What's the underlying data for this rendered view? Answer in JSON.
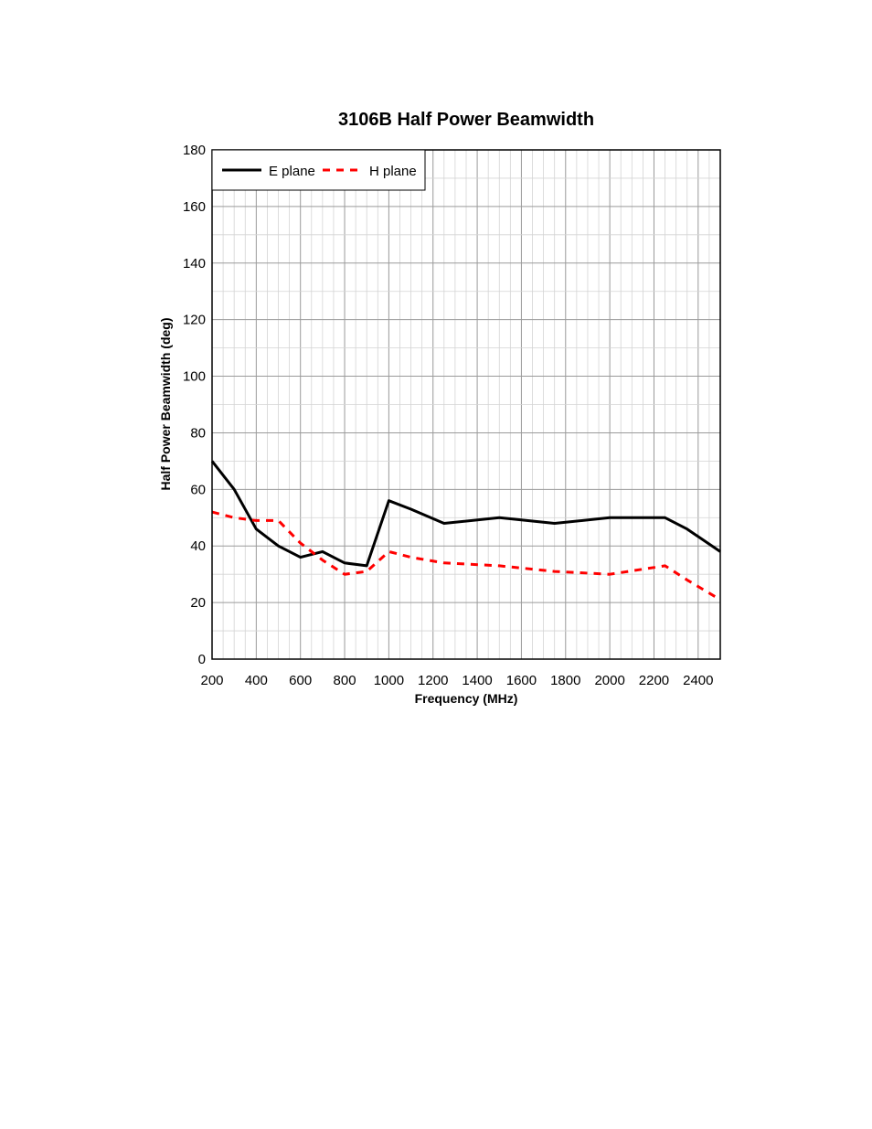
{
  "chart_data": {
    "type": "line",
    "title": "3106B Half Power Beamwidth",
    "xlabel": "Frequency (MHz)",
    "ylabel": "Half Power Beamwidth (deg)",
    "xlim": [
      200,
      2500
    ],
    "ylim": [
      0,
      180
    ],
    "x_ticks": [
      200,
      400,
      600,
      800,
      1000,
      1200,
      1400,
      1600,
      1800,
      2000,
      2200,
      2400
    ],
    "y_ticks": [
      0,
      20,
      40,
      60,
      80,
      100,
      120,
      140,
      160,
      180
    ],
    "grid": true,
    "legend_position": "top-left",
    "series": [
      {
        "name": "E plane",
        "color": "#000000",
        "style": "solid",
        "x": [
          200,
          300,
          400,
          500,
          600,
          700,
          800,
          900,
          1000,
          1100,
          1250,
          1500,
          1750,
          2000,
          2250,
          2350,
          2500
        ],
        "y": [
          70,
          60,
          46,
          40,
          36,
          38,
          34,
          33,
          56,
          53,
          48,
          50,
          48,
          50,
          50,
          46,
          38
        ]
      },
      {
        "name": "H plane",
        "color": "#ff0000",
        "style": "dashed",
        "x": [
          200,
          300,
          400,
          500,
          600,
          700,
          800,
          900,
          1000,
          1100,
          1250,
          1500,
          1750,
          2000,
          2250,
          2350,
          2500
        ],
        "y": [
          52,
          50,
          49,
          49,
          41,
          35,
          30,
          31,
          38,
          36,
          34,
          33,
          31,
          30,
          33,
          28,
          21
        ]
      }
    ]
  }
}
